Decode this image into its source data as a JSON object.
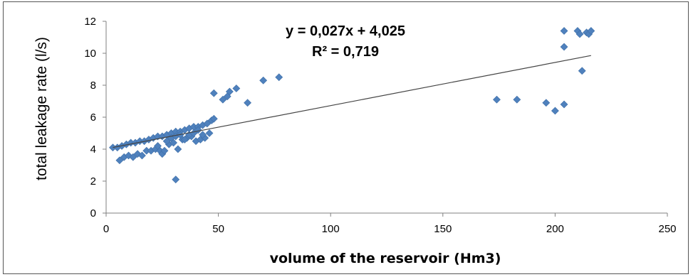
{
  "chart_data": {
    "type": "scatter",
    "title": "",
    "xlabel": "volume of the reservoir (Hm3)",
    "ylabel": "total leakage rate (l/s)",
    "xlim": [
      0,
      250
    ],
    "ylim": [
      0,
      12
    ],
    "xticks": [
      "0",
      "50",
      "100",
      "150",
      "200",
      "250"
    ],
    "yticks": [
      "0",
      "2",
      "4",
      "6",
      "8",
      "10",
      "12"
    ],
    "grid": false,
    "legend": "none",
    "marker_color": "#4f81bd",
    "trendline_color": "#444444",
    "trendline": {
      "slope": 0.027,
      "intercept": 4.025
    },
    "equation": "y = 0,027x + 4,025",
    "r_squared": "R² = 0,719",
    "series": [
      {
        "points": [
          [
            3,
            4.1
          ],
          [
            5,
            4.1
          ],
          [
            7,
            4.2
          ],
          [
            9,
            4.3
          ],
          [
            11,
            4.4
          ],
          [
            13,
            4.4
          ],
          [
            15,
            4.5
          ],
          [
            17,
            4.5
          ],
          [
            19,
            4.6
          ],
          [
            21,
            4.7
          ],
          [
            23,
            4.8
          ],
          [
            25,
            4.8
          ],
          [
            27,
            4.9
          ],
          [
            29,
            5.0
          ],
          [
            31,
            5.1
          ],
          [
            33,
            5.1
          ],
          [
            35,
            5.2
          ],
          [
            37,
            5.3
          ],
          [
            39,
            5.4
          ],
          [
            41,
            5.4
          ],
          [
            43,
            5.5
          ],
          [
            45,
            5.6
          ],
          [
            47,
            5.8
          ],
          [
            48,
            5.9
          ],
          [
            6,
            3.3
          ],
          [
            8,
            3.5
          ],
          [
            10,
            3.6
          ],
          [
            12,
            3.5
          ],
          [
            14,
            3.7
          ],
          [
            16,
            3.6
          ],
          [
            18,
            3.9
          ],
          [
            20,
            3.9
          ],
          [
            22,
            4.0
          ],
          [
            24,
            3.9
          ],
          [
            25,
            3.7
          ],
          [
            26,
            3.9
          ],
          [
            28,
            4.3
          ],
          [
            30,
            4.4
          ],
          [
            32,
            4.0
          ],
          [
            34,
            4.6
          ],
          [
            36,
            4.7
          ],
          [
            38,
            4.8
          ],
          [
            40,
            4.5
          ],
          [
            42,
            4.6
          ],
          [
            44,
            4.7
          ],
          [
            46,
            5.0
          ],
          [
            23,
            4.2
          ],
          [
            27,
            4.5
          ],
          [
            29,
            4.7
          ],
          [
            31,
            4.8
          ],
          [
            33,
            4.9
          ],
          [
            35,
            4.6
          ],
          [
            37,
            4.9
          ],
          [
            39,
            5.0
          ],
          [
            41,
            5.2
          ],
          [
            43,
            4.9
          ],
          [
            31,
            2.1
          ],
          [
            48,
            7.5
          ],
          [
            52,
            7.1
          ],
          [
            54,
            7.3
          ],
          [
            55,
            7.6
          ],
          [
            58,
            7.8
          ],
          [
            63,
            6.9
          ],
          [
            70,
            8.3
          ],
          [
            77,
            8.5
          ],
          [
            174,
            7.1
          ],
          [
            183,
            7.1
          ],
          [
            196,
            6.9
          ],
          [
            200,
            6.4
          ],
          [
            204,
            6.8
          ],
          [
            204,
            10.4
          ],
          [
            204,
            11.4
          ],
          [
            210,
            11.4
          ],
          [
            211,
            11.2
          ],
          [
            212,
            8.9
          ],
          [
            214,
            11.3
          ],
          [
            215,
            11.2
          ],
          [
            216,
            11.4
          ]
        ]
      }
    ]
  }
}
